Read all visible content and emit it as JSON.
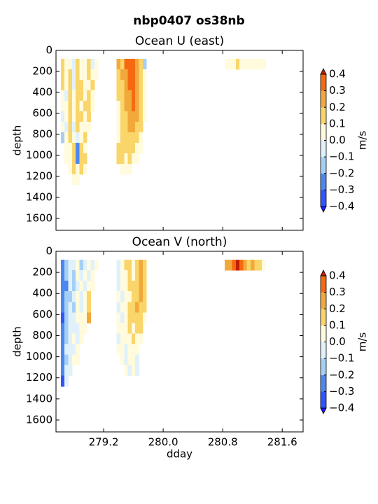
{
  "title": "nbp0407 os38nb",
  "chart_data": [
    {
      "type": "contourf",
      "title": "Ocean U (east)",
      "ylabel": "depth",
      "x": [
        278.65,
        278.7,
        278.75,
        278.8,
        278.85,
        278.9,
        278.95,
        279.0,
        279.05,
        279.1,
        279.4,
        279.45,
        279.5,
        279.55,
        279.6,
        279.65,
        279.7,
        279.75,
        280.85,
        280.9,
        280.95,
        281.0,
        281.05,
        281.1,
        281.15,
        281.2,
        281.25,
        281.3,
        281.35
      ],
      "y": [
        130,
        230,
        330,
        430,
        530,
        630,
        730,
        830,
        930,
        1030,
        1130,
        1230
      ],
      "values": [
        [
          0.15,
          0.1,
          0.05,
          -0.05,
          0.15,
          0.1,
          0.05,
          0.15,
          -0.05,
          0.05,
          0.25,
          0.2,
          0.35,
          0.35,
          0.35,
          0.3,
          0.15,
          -0.15,
          0.05,
          0.05,
          0.05,
          0.15,
          0.05,
          0.05,
          0.05,
          0.05,
          0.05,
          0.05,
          0.05
        ],
        [
          0.15,
          0.05,
          0.15,
          -0.05,
          0.15,
          0.05,
          0.05,
          0.15,
          0.05,
          0.05,
          0.15,
          0.25,
          0.25,
          0.35,
          0.35,
          0.25,
          0.15,
          0.05,
          null,
          null,
          null,
          null,
          null,
          null,
          null,
          null,
          null,
          null,
          null
        ],
        [
          0.15,
          0.05,
          0.15,
          -0.05,
          0.15,
          0.15,
          0.05,
          0.05,
          0.15,
          null,
          0.15,
          0.15,
          0.25,
          0.35,
          0.35,
          0.25,
          0.15,
          0.05,
          null,
          null,
          null,
          null,
          null,
          null,
          null,
          null,
          null,
          null,
          null
        ],
        [
          0.05,
          -0.05,
          0.15,
          0.05,
          0.15,
          0.15,
          0.05,
          0.15,
          0.05,
          null,
          0.15,
          0.15,
          0.25,
          0.25,
          0.35,
          0.25,
          0.15,
          0.05,
          null,
          null,
          null,
          null,
          null,
          null,
          null,
          null,
          null,
          null,
          null
        ],
        [
          0.05,
          0.05,
          0.15,
          0.05,
          0.15,
          0.05,
          0.15,
          0.15,
          0.05,
          null,
          0.05,
          0.15,
          0.25,
          0.25,
          0.35,
          0.25,
          0.15,
          0.05,
          null,
          null,
          null,
          null,
          null,
          null,
          null,
          null,
          null,
          null,
          null
        ],
        [
          -0.05,
          0.05,
          0.15,
          0.05,
          0.15,
          0.15,
          0.05,
          0.15,
          null,
          null,
          0.05,
          0.15,
          0.15,
          0.25,
          0.25,
          0.25,
          0.15,
          0.05,
          null,
          null,
          null,
          null,
          null,
          null,
          null,
          null,
          null,
          null,
          null
        ],
        [
          0.05,
          -0.05,
          0.15,
          -0.05,
          0.15,
          0.05,
          0.05,
          0.05,
          null,
          null,
          0.05,
          0.15,
          0.15,
          0.25,
          0.25,
          0.15,
          0.15,
          null,
          null,
          null,
          null,
          null,
          null,
          null,
          null,
          null,
          null,
          null,
          null
        ],
        [
          -0.15,
          0.05,
          0.15,
          0.05,
          -0.05,
          0.05,
          0.15,
          null,
          null,
          null,
          0.05,
          0.15,
          0.15,
          0.15,
          0.15,
          0.15,
          0.05,
          null,
          null,
          null,
          null,
          null,
          null,
          null,
          null,
          null,
          null,
          null,
          null
        ],
        [
          null,
          0.05,
          0.05,
          0.15,
          -0.25,
          0.15,
          0.05,
          null,
          null,
          null,
          0.15,
          0.15,
          0.15,
          0.15,
          0.15,
          0.05,
          0.05,
          null,
          null,
          null,
          null,
          null,
          null,
          null,
          null,
          null,
          null,
          null,
          null
        ],
        [
          null,
          0.05,
          0.05,
          0.15,
          -0.25,
          0.15,
          0.15,
          null,
          null,
          null,
          0.15,
          0.15,
          0.05,
          0.15,
          0.05,
          0.05,
          null,
          null,
          null,
          null,
          null,
          null,
          null,
          null,
          null,
          null,
          null,
          null,
          null
        ],
        [
          null,
          null,
          0.05,
          0.15,
          0.05,
          0.15,
          0.05,
          null,
          null,
          null,
          null,
          0.05,
          0.05,
          0.05,
          null,
          null,
          null,
          null,
          null,
          null,
          null,
          null,
          null,
          null,
          null,
          null,
          null,
          null,
          null
        ],
        [
          null,
          null,
          null,
          0.05,
          0.05,
          null,
          null,
          null,
          null,
          null,
          null,
          null,
          null,
          null,
          null,
          null,
          null,
          null,
          null,
          null,
          null,
          null,
          null,
          null,
          null,
          null,
          null,
          null,
          null
        ]
      ],
      "xlim": [
        278.56,
        281.88
      ],
      "ylim": [
        1713,
        0
      ],
      "xticks": [
        279.2,
        {
          "value": 280,
          "label": "280.0"
        },
        280.8,
        281.6
      ],
      "yticks": [
        0,
        200,
        400,
        600,
        800,
        1000,
        1200,
        1400,
        1600
      ],
      "colorbar": {
        "label": "m/s",
        "levels": [
          -0.4,
          -0.3,
          -0.2,
          -0.1,
          0,
          0.1,
          0.2,
          0.3,
          0.4
        ],
        "colors": [
          "#3355ff",
          "#4d88f0",
          "#a6cff5",
          "#e0f1fb",
          "#fffbdc",
          "#f9d56a",
          "#f2a93b",
          "#f56a10"
        ],
        "under_color": "#1a1aff",
        "over_color": "#c02000",
        "ticks": [
          {
            "value": -0.4,
            "label": "−0.4"
          },
          {
            "value": -0.3,
            "label": "−0.3"
          },
          {
            "value": -0.2,
            "label": "−0.2"
          },
          {
            "value": -0.1,
            "label": "−0.1"
          },
          {
            "value": 0,
            "label": "0.0"
          },
          0.1,
          0.2,
          0.3,
          0.4
        ]
      }
    },
    {
      "type": "contourf",
      "title": "Ocean V (north)",
      "ylabel": "depth",
      "xlabel": "dday",
      "x": [
        278.65,
        278.7,
        278.75,
        278.8,
        278.85,
        278.9,
        278.95,
        279.0,
        279.05,
        279.1,
        279.4,
        279.45,
        279.5,
        279.55,
        279.6,
        279.65,
        279.7,
        279.75,
        280.85,
        280.9,
        280.95,
        281.0,
        281.05,
        281.1,
        281.15,
        281.2,
        281.25,
        281.3,
        281.35
      ],
      "y": [
        130,
        230,
        330,
        430,
        530,
        630,
        730,
        830,
        930,
        1030,
        1130,
        1230
      ],
      "values": [
        [
          -0.25,
          -0.15,
          -0.05,
          -0.05,
          0.05,
          -0.15,
          -0.05,
          0.05,
          -0.05,
          0.05,
          -0.05,
          0.05,
          0.15,
          0.15,
          0.05,
          0.15,
          0.25,
          0.15,
          0.25,
          0.25,
          0.35,
          0.45,
          0.35,
          0.25,
          0.15,
          0.25,
          0.15,
          0.15,
          0.05
        ],
        [
          -0.25,
          -0.15,
          -0.05,
          -0.15,
          0.05,
          -0.05,
          0.05,
          -0.05,
          0.05,
          null,
          -0.05,
          0.05,
          0.05,
          0.15,
          0.05,
          0.15,
          0.25,
          0.15,
          null,
          null,
          null,
          null,
          null,
          null,
          null,
          null,
          null,
          null,
          null
        ],
        [
          -0.25,
          -0.25,
          -0.05,
          -0.15,
          -0.05,
          0.05,
          -0.05,
          0.05,
          0.05,
          null,
          -0.05,
          0.05,
          0.05,
          0.15,
          0.15,
          0.15,
          0.25,
          0.15,
          null,
          null,
          null,
          null,
          null,
          null,
          null,
          null,
          null,
          null,
          null
        ],
        [
          -0.25,
          -0.15,
          -0.15,
          -0.05,
          0.05,
          -0.05,
          0.05,
          0.15,
          null,
          null,
          0.05,
          -0.05,
          0.05,
          0.05,
          0.15,
          0.15,
          0.25,
          0.15,
          null,
          null,
          null,
          null,
          null,
          null,
          null,
          null,
          null,
          null,
          null
        ],
        [
          -0.25,
          -0.15,
          -0.05,
          -0.15,
          0.05,
          -0.05,
          0.05,
          0.15,
          null,
          null,
          -0.05,
          0.05,
          0.05,
          0.15,
          0.15,
          0.25,
          0.15,
          0.15,
          null,
          null,
          null,
          null,
          null,
          null,
          null,
          null,
          null,
          null,
          null
        ],
        [
          -0.35,
          -0.15,
          -0.05,
          -0.05,
          0.05,
          0.05,
          0.05,
          0.25,
          null,
          null,
          0.05,
          -0.05,
          0.05,
          0.15,
          0.15,
          0.15,
          0.15,
          0.05,
          null,
          null,
          null,
          null,
          null,
          null,
          null,
          null,
          null,
          null,
          null
        ],
        [
          -0.25,
          -0.15,
          -0.05,
          -0.05,
          -0.05,
          0.05,
          0.05,
          null,
          null,
          null,
          0.05,
          0.05,
          0.05,
          0.15,
          0.05,
          0.15,
          0.15,
          null,
          null,
          null,
          null,
          null,
          null,
          null,
          null,
          null,
          null,
          null,
          null
        ],
        [
          -0.25,
          -0.15,
          -0.05,
          0.05,
          -0.05,
          0.05,
          null,
          null,
          null,
          null,
          -0.05,
          0.05,
          0.05,
          0.05,
          0.15,
          0.05,
          0.05,
          null,
          null,
          null,
          null,
          null,
          null,
          null,
          null,
          null,
          null,
          null,
          null
        ],
        [
          -0.25,
          -0.05,
          -0.05,
          -0.05,
          0.05,
          null,
          null,
          null,
          null,
          null,
          0.05,
          0.05,
          -0.05,
          0.05,
          0.05,
          0.05,
          null,
          null,
          null,
          null,
          null,
          null,
          null,
          null,
          null,
          null,
          null,
          null,
          null
        ],
        [
          -0.25,
          -0.15,
          -0.05,
          0.05,
          0.05,
          null,
          null,
          null,
          null,
          null,
          null,
          0.05,
          -0.05,
          0.05,
          0.05,
          -0.05,
          null,
          null,
          null,
          null,
          null,
          null,
          null,
          null,
          null,
          null,
          null,
          null,
          null
        ],
        [
          -0.25,
          -0.05,
          -0.05,
          null,
          null,
          null,
          null,
          null,
          null,
          null,
          null,
          null,
          0.05,
          -0.05,
          0.05,
          -0.05,
          null,
          null,
          null,
          null,
          null,
          null,
          null,
          null,
          null,
          null,
          null,
          null,
          null
        ],
        [
          -0.35,
          -0.05,
          null,
          null,
          null,
          null,
          null,
          null,
          null,
          null,
          null,
          null,
          null,
          null,
          null,
          null,
          null,
          null,
          null,
          null,
          null,
          null,
          null,
          null,
          null,
          null,
          null,
          null,
          null
        ]
      ],
      "xlim": [
        278.56,
        281.88
      ],
      "ylim": [
        1713,
        0
      ],
      "xticks": [
        279.2,
        {
          "value": 280,
          "label": "280.0"
        },
        280.8,
        281.6
      ],
      "yticks": [
        0,
        200,
        400,
        600,
        800,
        1000,
        1200,
        1400,
        1600
      ],
      "colorbar": {
        "label": "m/s",
        "levels": [
          -0.4,
          -0.3,
          -0.2,
          -0.1,
          0,
          0.1,
          0.2,
          0.3,
          0.4
        ],
        "colors": [
          "#3355ff",
          "#4d88f0",
          "#a6cff5",
          "#e0f1fb",
          "#fffbdc",
          "#f9d56a",
          "#f2a93b",
          "#f56a10"
        ],
        "under_color": "#1a1aff",
        "over_color": "#c02000",
        "ticks": [
          {
            "value": -0.4,
            "label": "−0.4"
          },
          {
            "value": -0.3,
            "label": "−0.3"
          },
          {
            "value": -0.2,
            "label": "−0.2"
          },
          {
            "value": -0.1,
            "label": "−0.1"
          },
          {
            "value": 0,
            "label": "0.0"
          },
          0.1,
          0.2,
          0.3,
          0.4
        ]
      }
    }
  ]
}
